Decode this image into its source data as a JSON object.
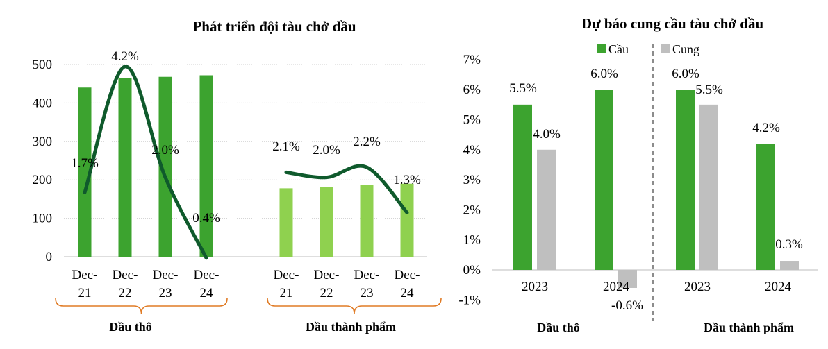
{
  "chart_data": [
    {
      "type": "bar",
      "title": "Phát triển đội tàu chở dầu",
      "ylim": [
        0,
        500
      ],
      "yticks": [
        "0",
        "100",
        "200",
        "300",
        "400",
        "500"
      ],
      "groups": [
        {
          "name": "Dầu thô",
          "categories": [
            [
              "Dec-",
              "21"
            ],
            [
              "Dec-",
              "22"
            ],
            [
              "Dec-",
              "23"
            ],
            [
              "Dec-",
              "24"
            ]
          ],
          "values": [
            440,
            464,
            468,
            472
          ],
          "growth": [
            1.7,
            4.2,
            2.0,
            0.4
          ],
          "growth_labels": [
            "1.7%",
            "4.2%",
            "2.0%",
            "0.4%"
          ],
          "bar_color": "#3ca32f"
        },
        {
          "name": "Dầu thành phẩm",
          "categories": [
            [
              "Dec-",
              "21"
            ],
            [
              "Dec-",
              "22"
            ],
            [
              "Dec-",
              "23"
            ],
            [
              "Dec-",
              "24"
            ]
          ],
          "values": [
            178,
            182,
            186,
            190
          ],
          "growth": [
            2.1,
            2.0,
            2.2,
            1.3
          ],
          "growth_labels": [
            "2.1%",
            "2.0%",
            "2.2%",
            "1.3%"
          ],
          "bar_color": "#8fd14f"
        }
      ],
      "line_color": "#0f5a2c",
      "bracket_color": "#e07b25"
    },
    {
      "type": "bar",
      "title": "Dự báo cung cầu tàu chở dầu",
      "ylim": [
        -1,
        7
      ],
      "yticks": [
        "-1%",
        "0%",
        "1%",
        "2%",
        "3%",
        "4%",
        "5%",
        "6%",
        "7%"
      ],
      "legend": [
        "Cầu",
        "Cung"
      ],
      "series_colors": [
        "#3ca32f",
        "#bfbfbf"
      ],
      "groups": [
        {
          "name": "Dầu thô",
          "categories": [
            "2023",
            "2024"
          ],
          "series": [
            {
              "name": "Cầu",
              "values": [
                5.5,
                6.0
              ],
              "labels": [
                "5.5%",
                "6.0%"
              ]
            },
            {
              "name": "Cung",
              "values": [
                4.0,
                -0.6
              ],
              "labels": [
                "4.0%",
                "-0.6%"
              ]
            }
          ]
        },
        {
          "name": "Dầu thành phẩm",
          "categories": [
            "2023",
            "2024"
          ],
          "series": [
            {
              "name": "Cầu",
              "values": [
                6.0,
                4.2
              ],
              "labels": [
                "6.0%",
                "4.2%"
              ]
            },
            {
              "name": "Cung",
              "values": [
                5.5,
                0.3
              ],
              "labels": [
                "5.5%",
                "0.3%"
              ]
            }
          ]
        }
      ]
    }
  ]
}
